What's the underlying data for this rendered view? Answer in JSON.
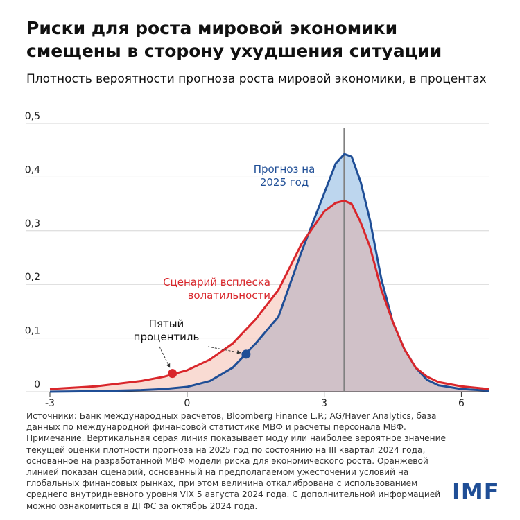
{
  "chart_data": {
    "type": "area",
    "title": "Риски для роста мировой экономики смещены в сторону ухудшения ситуации",
    "subtitle": "Плотность вероятности прогноза роста мировой экономики, в процентах",
    "x": [
      -3,
      -2,
      -1,
      -0.5,
      0,
      0.5,
      1,
      1.5,
      2,
      2.5,
      3,
      3.25,
      3.44,
      3.6,
      3.8,
      4,
      4.25,
      4.5,
      4.75,
      5,
      5.25,
      5.5,
      6,
      6.6
    ],
    "series": [
      {
        "name": "Прогноз на 2025 год",
        "color": "#1f4e96",
        "fill": "#bdd6ee",
        "values": [
          0,
          0.001,
          0.003,
          0.005,
          0.009,
          0.02,
          0.045,
          0.09,
          0.14,
          0.26,
          0.37,
          0.425,
          0.443,
          0.438,
          0.39,
          0.32,
          0.21,
          0.13,
          0.08,
          0.045,
          0.022,
          0.012,
          0.005,
          0.002
        ],
        "fifth_percentile": {
          "x": 1.29,
          "y": 0.07
        }
      },
      {
        "name": "Сценарий всплеска волатильности",
        "color": "#d9262b",
        "fill": "rgba(240,160,140,0.38)",
        "values": [
          0.005,
          0.01,
          0.02,
          0.028,
          0.04,
          0.06,
          0.09,
          0.135,
          0.19,
          0.275,
          0.336,
          0.352,
          0.356,
          0.35,
          0.315,
          0.27,
          0.19,
          0.13,
          0.08,
          0.045,
          0.028,
          0.018,
          0.01,
          0.005
        ],
        "fifth_percentile": {
          "x": -0.32,
          "y": 0.034
        }
      }
    ],
    "mode_line": 3.44,
    "annotation": "Пятый процентиль",
    "xlim": [
      -3,
      6.6
    ],
    "xticks": [
      -3,
      0,
      3,
      6
    ],
    "ylim": [
      0,
      0.5
    ],
    "yticks": [
      0,
      {
        "value": 0.1,
        "label": "0,1"
      },
      {
        "value": 0.2,
        "label": "0,2"
      },
      {
        "value": 0.3,
        "label": "0,3"
      },
      {
        "value": 0.4,
        "label": "0,4"
      },
      {
        "value": 0.5,
        "label": "0,5"
      }
    ],
    "grid": true
  },
  "footer": {
    "sources": "Источники: Банк международных расчетов, Bloomberg Finance L.P.; AG/Haver Analytics, база данных по международной финансовой статистике МВФ и расчеты персонала МВФ.",
    "note": "Примечание. Вертикальная серая линия показывает моду или наиболее вероятное значение текущей оценки плотности прогноза на 2025 год по состоянию на III квартал 2024 года, основанное на разработанной МВФ модели риска для экономического роста. Оранжевой линией показан сценарий, основанный на предполагаемом ужесточении условий на глобальных финансовых рынках, при этом величина откалибрована с использованием среднего внутридневного уровня VIX 5 августа 2024 года. С дополнительной информацией можно ознакомиться в ДГФС за октябрь 2024 года.",
    "logo": "IMF"
  }
}
